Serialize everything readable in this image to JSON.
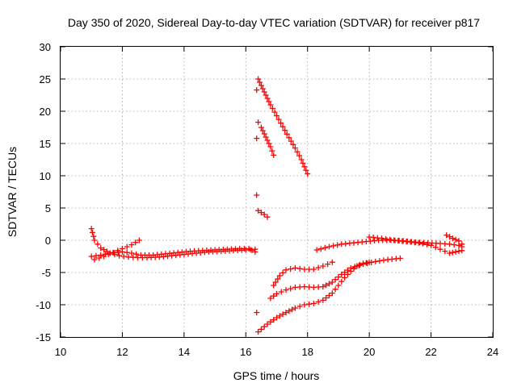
{
  "chart_data": {
    "type": "scatter",
    "title": "Day 350 of 2020, Sidereal Day-to-day VTEC variation (SDTVAR) for receiver p817",
    "xlabel": "GPS time / hours",
    "ylabel": "SDTVAR / TECUs",
    "xlim": [
      10,
      24
    ],
    "ylim": [
      -15,
      30
    ],
    "xticks": [
      "10",
      "12",
      "14",
      "16",
      "18",
      "20",
      "22",
      "24"
    ],
    "yticks": [
      "-15",
      "-10",
      "-5",
      "0",
      "5",
      "10",
      "15",
      "20",
      "25",
      "30"
    ],
    "grid": true,
    "marker": "plus",
    "color": "#ff0000",
    "series": [
      {
        "x": [
          11.0,
          11.3,
          11.6,
          12.0,
          12.3,
          12.6,
          13.0,
          13.4,
          13.8,
          14.2,
          14.6,
          15.0,
          15.4,
          15.8,
          16.1,
          16.3
        ],
        "y": [
          -2.5,
          -2.3,
          -2.0,
          -1.8,
          -2.0,
          -2.3,
          -2.3,
          -2.1,
          -1.9,
          -1.7,
          -1.6,
          -1.5,
          -1.4,
          -1.3,
          -1.3,
          -1.8
        ]
      },
      {
        "x": [
          11.0,
          11.1,
          11.3,
          11.6,
          11.9,
          12.2,
          12.5,
          12.8,
          13.2,
          13.6,
          14.0,
          14.4,
          14.8,
          15.2,
          15.6,
          16.0,
          16.3
        ],
        "y": [
          1.8,
          0.0,
          -1.2,
          -2.0,
          -2.4,
          -2.6,
          -2.7,
          -2.7,
          -2.6,
          -2.4,
          -2.2,
          -2.0,
          -1.8,
          -1.7,
          -1.6,
          -1.5,
          -1.4
        ]
      },
      {
        "x": [
          11.1,
          11.4,
          11.7,
          12.0,
          12.3,
          12.55
        ],
        "y": [
          -3.0,
          -2.5,
          -1.9,
          -1.3,
          -0.7,
          0.0
        ]
      },
      {
        "x": [
          16.4,
          16.6,
          16.8,
          17.0,
          17.2,
          17.4,
          17.6,
          17.8,
          18.0
        ],
        "y": [
          25.0,
          23.0,
          21.0,
          19.3,
          17.6,
          15.9,
          14.3,
          12.5,
          10.3
        ]
      },
      {
        "x": [
          16.4,
          16.5,
          16.6,
          16.7,
          16.8,
          16.9
        ],
        "y": [
          18.3,
          17.5,
          16.5,
          15.5,
          14.5,
          13.2
        ]
      },
      {
        "x": [
          16.35,
          16.35,
          16.35,
          16.35
        ],
        "y": [
          23.3,
          15.8,
          7.0,
          -11.2
        ]
      },
      {
        "x": [
          16.4,
          16.5,
          16.6,
          16.7
        ],
        "y": [
          4.6,
          4.3,
          4.0,
          3.6
        ]
      },
      {
        "x": [
          16.4,
          16.7,
          17.0,
          17.3,
          17.6,
          17.9,
          18.2,
          18.5,
          18.8,
          19.0,
          19.2,
          19.4,
          19.6,
          19.8,
          20.0
        ],
        "y": [
          -14.2,
          -13.0,
          -12.0,
          -11.2,
          -10.5,
          -10.0,
          -9.8,
          -9.3,
          -8.2,
          -7.0,
          -5.8,
          -4.8,
          -4.0,
          -3.6,
          -3.4
        ]
      },
      {
        "x": [
          16.8,
          17.0,
          17.3,
          17.6,
          17.9,
          18.2,
          18.5,
          18.8,
          19.1,
          19.4,
          19.8,
          20.2,
          20.6,
          21.0
        ],
        "y": [
          -9.0,
          -8.3,
          -7.7,
          -7.3,
          -7.2,
          -7.3,
          -7.2,
          -6.5,
          -5.3,
          -4.3,
          -3.7,
          -3.3,
          -3.0,
          -2.8
        ]
      },
      {
        "x": [
          16.9,
          17.1,
          17.3,
          17.6,
          17.9,
          18.2,
          18.5,
          18.8
        ],
        "y": [
          -7.0,
          -5.5,
          -4.6,
          -4.3,
          -4.5,
          -4.5,
          -4.0,
          -3.4
        ]
      },
      {
        "x": [
          18.3,
          18.7,
          19.1,
          19.5,
          19.9,
          20.3,
          20.7,
          21.1,
          21.5,
          21.9,
          22.3,
          22.6,
          22.9,
          23.0
        ],
        "y": [
          -1.5,
          -1.0,
          -0.6,
          -0.4,
          -0.2,
          0.0,
          0.0,
          -0.1,
          -0.3,
          -0.4,
          -0.5,
          -0.6,
          -0.8,
          -1.0
        ]
      },
      {
        "x": [
          20.0,
          20.4,
          20.8,
          21.2,
          21.6,
          22.0,
          22.3,
          22.6,
          22.8,
          23.0
        ],
        "y": [
          0.5,
          0.3,
          0.0,
          -0.2,
          -0.4,
          -0.8,
          -1.4,
          -2.0,
          -1.8,
          -1.6
        ]
      },
      {
        "x": [
          22.5,
          22.7,
          22.9,
          23.0
        ],
        "y": [
          0.8,
          0.3,
          -0.1,
          -0.6
        ]
      }
    ]
  }
}
